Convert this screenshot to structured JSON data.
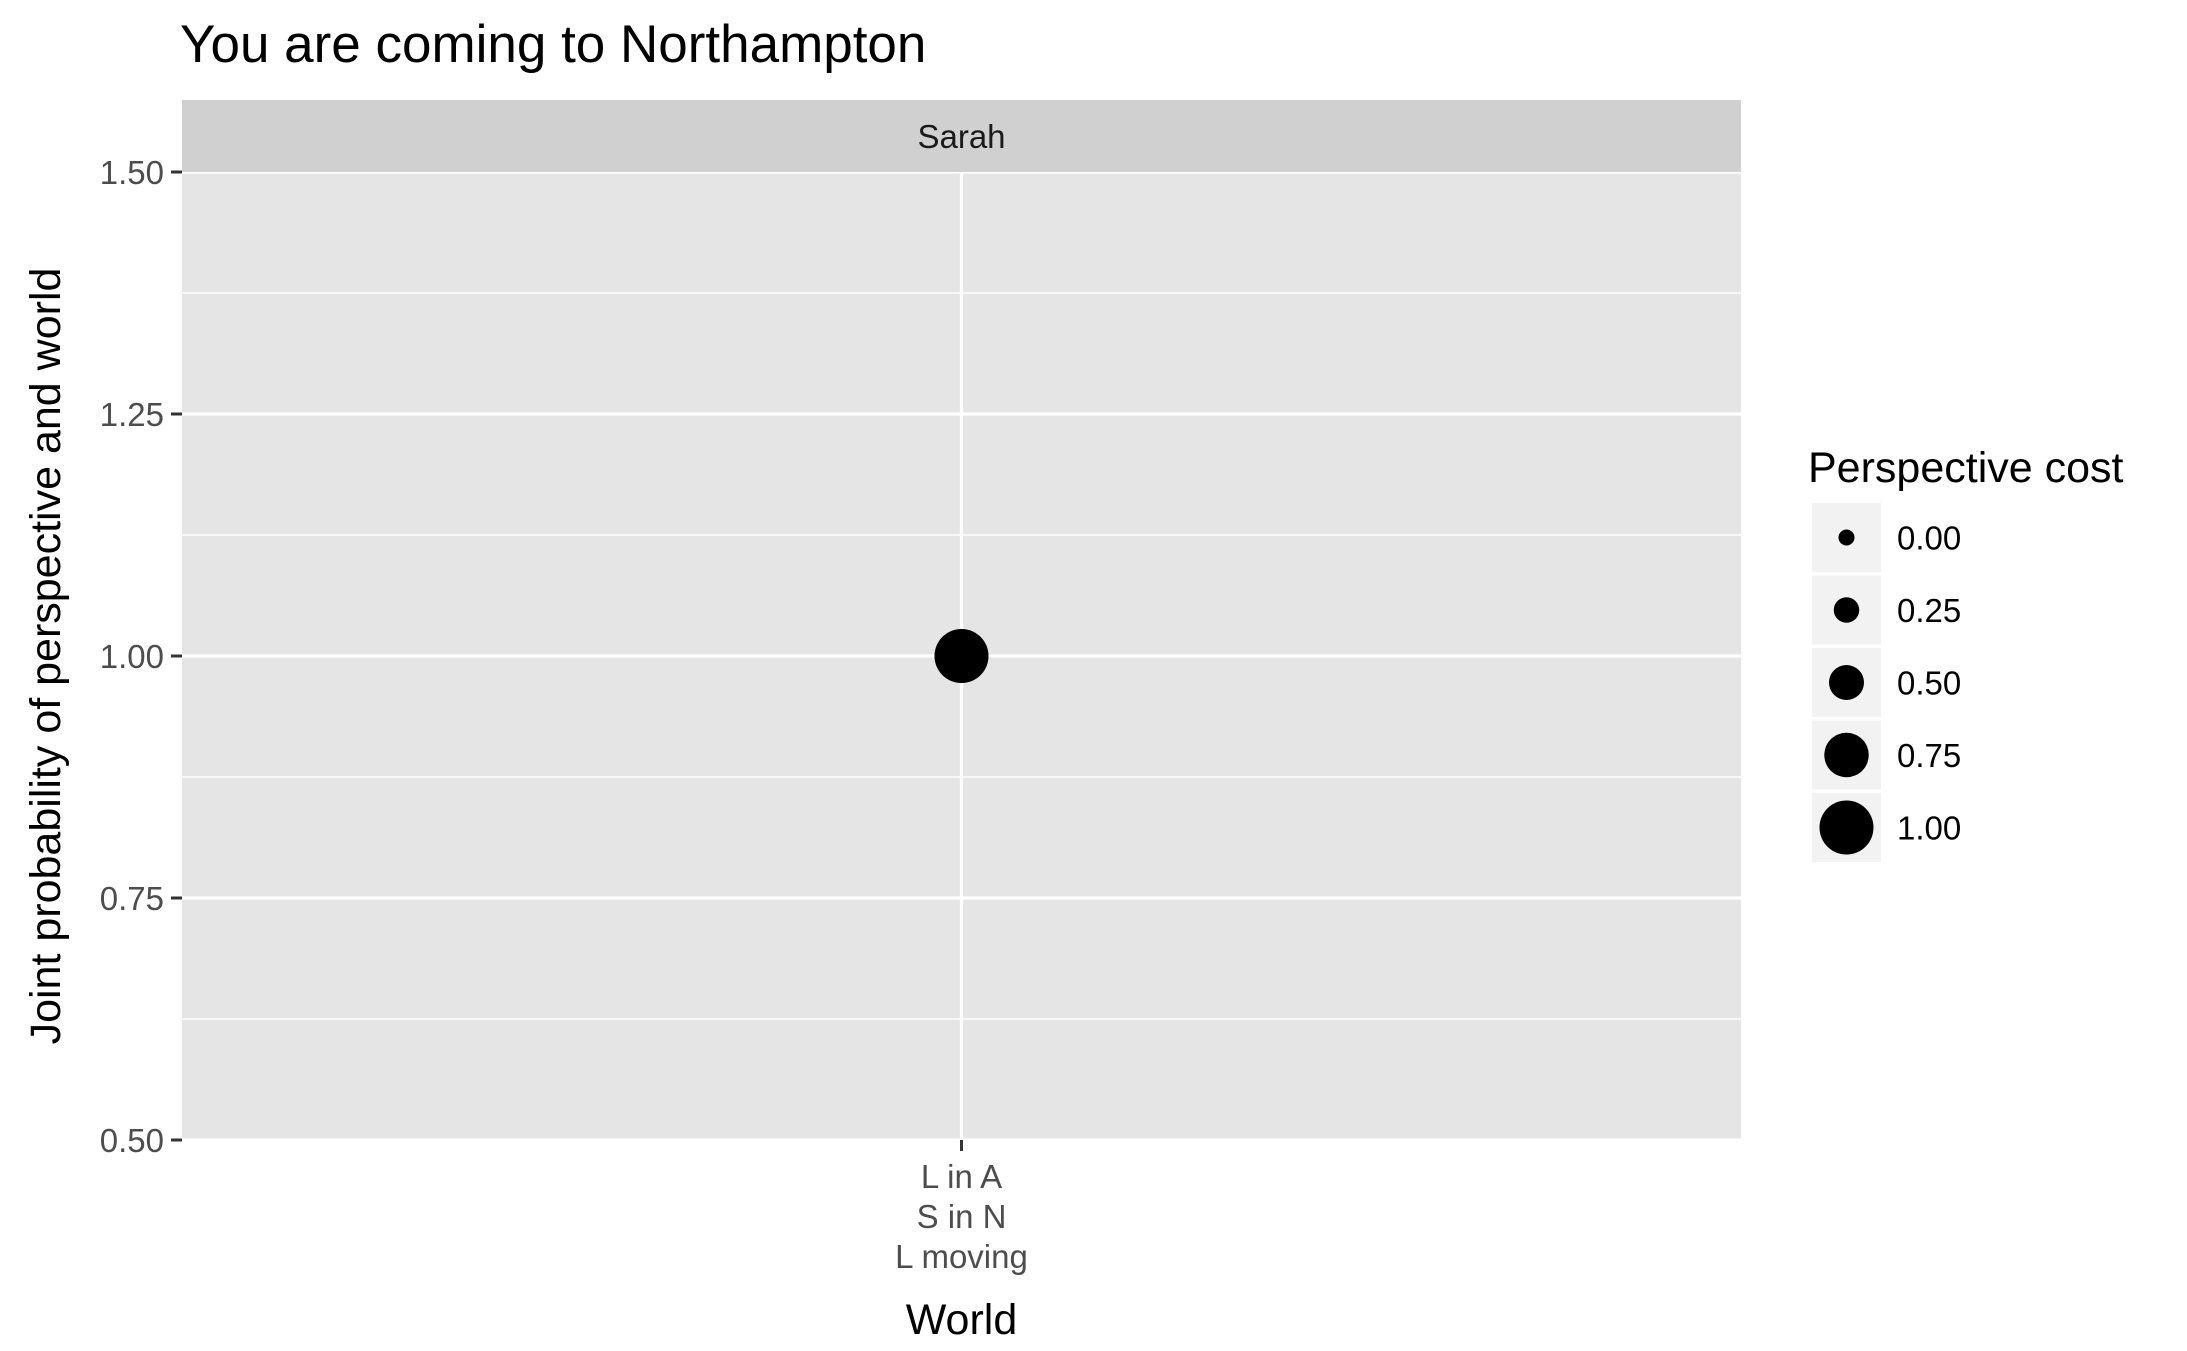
{
  "chart_data": {
    "type": "scatter",
    "title": "You are coming to Northampton",
    "facet": "Sarah",
    "xlabel": "World",
    "ylabel": "Joint probability of perspective and world",
    "ylim": [
      0.5,
      1.5
    ],
    "yticks": [
      "0.50",
      "0.75",
      "1.00",
      "1.25",
      "1.50"
    ],
    "x_categories": [
      {
        "lines": [
          "L in A",
          "S in N",
          "L moving"
        ]
      }
    ],
    "points": [
      {
        "x_index": 0,
        "y": 1.0,
        "size_value": 1.0
      }
    ],
    "legend": {
      "title": "Perspective cost",
      "placement": "right",
      "entries": [
        {
          "label": "0.00",
          "value": 0.0
        },
        {
          "label": "0.25",
          "value": 0.25
        },
        {
          "label": "0.50",
          "value": 0.5
        },
        {
          "label": "0.75",
          "value": 0.75
        },
        {
          "label": "1.00",
          "value": 1.0
        }
      ]
    },
    "grid": true,
    "colors": {
      "panel": "#E5E5E5",
      "strip": "#D0D0D0",
      "grid": "#FFFFFF",
      "point": "#000000"
    }
  }
}
